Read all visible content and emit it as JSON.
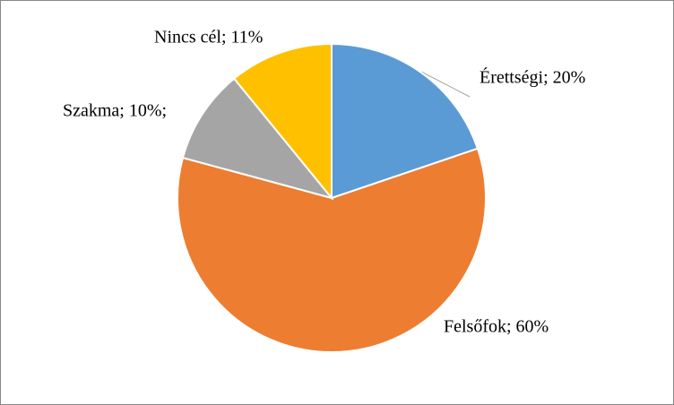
{
  "chart_data": {
    "type": "pie",
    "values": [
      20,
      60,
      10,
      11
    ],
    "value_labels": [
      "Érettségi; 20%",
      "Felsőfok; 60%",
      "Szakma; 10%;",
      "Nincs cél; 11%"
    ],
    "colors": [
      "#5b9bd5",
      "#ed7d31",
      "#a5a5a5",
      "#ffc000"
    ]
  }
}
